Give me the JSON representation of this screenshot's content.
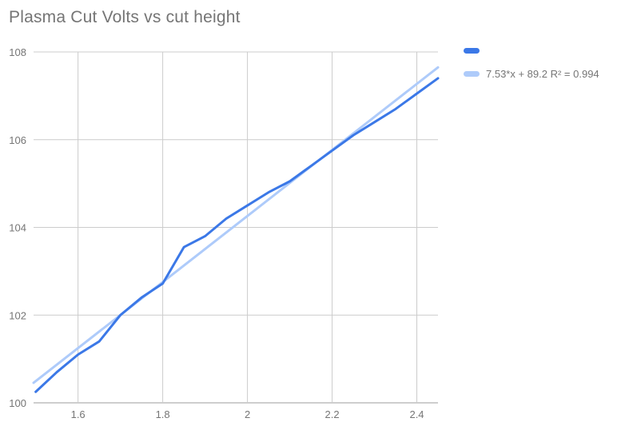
{
  "title": "Plasma Cut Volts vs cut height",
  "colors": {
    "series": "#3b78e7",
    "trendline": "#aecbfa",
    "gridline": "#cccccc",
    "axis_line": "#9e9e9e",
    "tick_text": "#757575",
    "title_text": "#757575",
    "background": "#ffffff"
  },
  "legend": {
    "series_label": "",
    "trendline_label": "7.53*x + 89.2 R² = 0.994"
  },
  "chart_data": {
    "type": "line",
    "title": "Plasma Cut Volts vs cut height",
    "xlabel": "",
    "ylabel": "",
    "xlim": [
      1.495,
      2.45
    ],
    "ylim": [
      100,
      108
    ],
    "grid": true,
    "legend_position": "top-right",
    "x_ticks": [
      {
        "value": 1.6,
        "label": "1.6"
      },
      {
        "value": 1.8,
        "label": "1.8"
      },
      {
        "value": 2.0,
        "label": "2"
      },
      {
        "value": 2.2,
        "label": "2.2"
      },
      {
        "value": 2.4,
        "label": "2.4"
      }
    ],
    "y_ticks": [
      {
        "value": 100,
        "label": "100"
      },
      {
        "value": 102,
        "label": "102"
      },
      {
        "value": 104,
        "label": "104"
      },
      {
        "value": 106,
        "label": "106"
      },
      {
        "value": 108,
        "label": "108"
      }
    ],
    "series": [
      {
        "name": "",
        "x": [
          1.5,
          1.55,
          1.6,
          1.65,
          1.7,
          1.75,
          1.8,
          1.85,
          1.9,
          1.95,
          2.0,
          2.05,
          2.1,
          2.15,
          2.2,
          2.25,
          2.3,
          2.35,
          2.4,
          2.45
        ],
        "y": [
          100.25,
          100.7,
          101.1,
          101.4,
          102.0,
          102.4,
          102.72,
          103.55,
          103.8,
          104.2,
          104.5,
          104.8,
          105.05,
          105.4,
          105.75,
          106.1,
          106.4,
          106.7,
          107.05,
          107.4
        ]
      }
    ],
    "trendline": {
      "label": "7.53*x + 89.2 R² = 0.994",
      "slope": 7.53,
      "intercept": 89.2,
      "r_squared": 0.994
    }
  }
}
